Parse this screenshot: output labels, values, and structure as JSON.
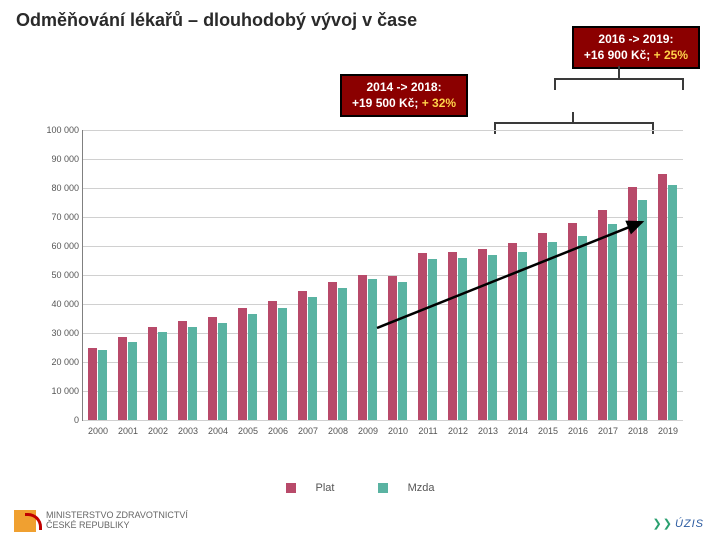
{
  "title": "Odměňování lékařů – dlouhodobý vývoj v čase",
  "callout_a": {
    "line1": "2016 -> 2019:",
    "line2_prefix": "+16 900 Kč; ",
    "line2_pct": "+ 25%",
    "bg": "#8b0000"
  },
  "callout_b": {
    "line1": "2014 -> 2018:",
    "line2_prefix": "+19 500 Kč; ",
    "line2_pct": "+ 32%",
    "bg": "#8b0000"
  },
  "chart": {
    "type": "bar",
    "categories": [
      "2000",
      "2001",
      "2002",
      "2003",
      "2004",
      "2005",
      "2006",
      "2007",
      "2008",
      "2009",
      "2010",
      "2011",
      "2012",
      "2013",
      "2014",
      "2015",
      "2016",
      "2017",
      "2018",
      "2019"
    ],
    "series": [
      {
        "name": "Plat",
        "color": "#b84a6a",
        "values": [
          25000,
          28500,
          32000,
          34000,
          35500,
          38500,
          41000,
          44500,
          47500,
          50000,
          49500,
          57500,
          58000,
          59000,
          61000,
          64500,
          68000,
          72500,
          80500,
          85000
        ]
      },
      {
        "name": "Mzda",
        "color": "#5ab3a2",
        "values": [
          24000,
          27000,
          30500,
          32000,
          33500,
          36500,
          38500,
          42500,
          45500,
          48500,
          47500,
          55500,
          56000,
          57000,
          58000,
          61500,
          63500,
          67500,
          76000,
          81000
        ]
      }
    ],
    "ylim": [
      0,
      100000
    ],
    "ytick_step": 10000,
    "bar_group_width": 0.66,
    "background_color": "#ffffff",
    "grid_color": "#d0d0d0",
    "title_fontsize": 18,
    "tick_fontsize": 9
  },
  "footer": {
    "ministry_line1": "MINISTERSTVO ZDRAVOTNICTVÍ",
    "ministry_line2": "ČESKÉ REPUBLIKY",
    "uzis": "ÚZIS"
  }
}
